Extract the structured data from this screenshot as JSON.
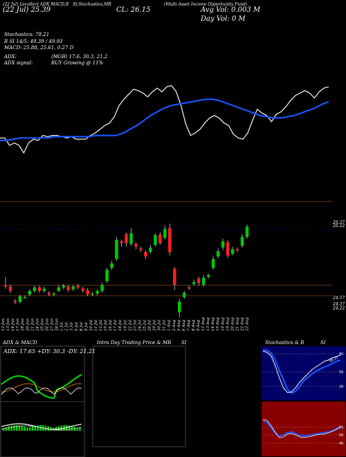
{
  "header": {
    "line1": "(22 Jul) Lecollect ADX MACD,R",
    "line1_b": "SI,Stochastics,MR",
    "line1_c": "(Multi Asset Income Opportunity Fund)",
    "open_label": "(22 Jul) 25.39",
    "cl_label": "CL: 26.15",
    "avg_vol": "Avg Vol: 0.003 M",
    "day_vol": "Day Vol: 0   M",
    "stoch": "Stochastics: 78.21",
    "rsi": "R           SI 14/5: 49.39 / 49.93",
    "macd": "MACD: 25.88, 25.61, 0.27 D",
    "adx": "ADX:",
    "adx_vals": "(MGB) 17.6, 30.3, 21.2",
    "adx_signal": "ADX  signal:",
    "adx_signal_val": "BUY Growing @ 11%"
  },
  "price_axis": {
    "top_label": "26.37",
    "top_label2": "26.22",
    "low_label": "24.57",
    "low_label2": "24.37",
    "low_label3": "24.22"
  },
  "dates": [
    "12 Jun",
    "13 Jun",
    "14 Jun",
    "17 Jun",
    "18 Jun",
    "20 Jun",
    "21 Jun",
    "24 Jun",
    "25 Jun",
    "26 Jun",
    "27 Jun",
    "28 Jun",
    "1 Jul",
    "2 Jul",
    "3 Jul",
    "5 Jul",
    "8 Jul",
    "9 Jul",
    "10 Jul",
    "11 Jul",
    "12 Jul",
    "15 Jul",
    "16 Jul",
    "17 Jul",
    "18 Jul",
    "19 Jul",
    "22 Jul",
    "23 Jul",
    "24 Jul",
    "25 Jul",
    "26 Jul",
    "29 Jul",
    "30 Jul",
    "31 Jul",
    "1 Aug",
    "2 Aug",
    "5 Aug",
    "6 Aug",
    "7 Aug",
    "8 Aug",
    "9 Aug",
    "12 Aug",
    "13 Aug",
    "14 Aug",
    "15 Aug",
    "16 Aug",
    "19 Aug",
    "20 Aug",
    "21 Aug",
    "22 Aug",
    "23 Aug"
  ],
  "panels": {
    "adx_title": "ADX  & MACD",
    "adx_values": "ADX: 17.65  +DY: 30.3  -DY: 21.21",
    "intra_title": "Intra  Day Trading Price  & MR",
    "intra_title_b": "SI",
    "stoch_title": "Stochastics  & R",
    "stoch_title_b": "SI",
    "stoch_levels": [
      "80",
      "50",
      "20"
    ],
    "rsi_levels": [
      "55",
      "50",
      "45"
    ],
    "stoch_value": "78.21"
  },
  "colors": {
    "up": "#00cc00",
    "down": "#ff2020",
    "ma": "#1a55ff",
    "line": "#ffffff",
    "grid": "#8b4513",
    "adx_green": "#00dd00",
    "stoch_bg": "#000066",
    "rsi_bg": "#880000"
  },
  "chart_data": {
    "type": "candlestick",
    "candles": [
      {
        "o": 24.82,
        "c": 24.8,
        "h": 25.02,
        "l": 24.75
      },
      {
        "o": 24.8,
        "c": 24.7,
        "h": 24.85,
        "l": 24.65
      },
      {
        "o": 24.48,
        "c": 24.45,
        "h": 24.52,
        "l": 24.4
      },
      {
        "o": 24.45,
        "c": 24.58,
        "h": 24.62,
        "l": 24.42
      },
      {
        "o": 24.55,
        "c": 24.56,
        "h": 24.6,
        "l": 24.52
      },
      {
        "o": 24.62,
        "c": 24.7,
        "h": 24.74,
        "l": 24.58
      },
      {
        "o": 24.7,
        "c": 24.78,
        "h": 24.82,
        "l": 24.66
      },
      {
        "o": 24.78,
        "c": 24.7,
        "h": 24.82,
        "l": 24.66
      },
      {
        "o": 24.7,
        "c": 24.75,
        "h": 24.8,
        "l": 24.66
      },
      {
        "o": 24.66,
        "c": 24.62,
        "h": 24.7,
        "l": 24.58
      },
      {
        "o": 24.62,
        "c": 24.64,
        "h": 24.68,
        "l": 24.58
      },
      {
        "o": 24.7,
        "c": 24.78,
        "h": 24.84,
        "l": 24.68
      },
      {
        "o": 24.78,
        "c": 24.82,
        "h": 24.86,
        "l": 24.74
      },
      {
        "o": 24.8,
        "c": 24.72,
        "h": 24.84,
        "l": 24.68
      },
      {
        "o": 24.74,
        "c": 24.8,
        "h": 24.84,
        "l": 24.7
      },
      {
        "o": 24.82,
        "c": 24.78,
        "h": 24.86,
        "l": 24.74
      },
      {
        "o": 24.76,
        "c": 24.7,
        "h": 24.8,
        "l": 24.66
      },
      {
        "o": 24.72,
        "c": 24.62,
        "h": 24.76,
        "l": 24.58
      },
      {
        "o": 24.62,
        "c": 24.64,
        "h": 24.68,
        "l": 24.58
      },
      {
        "o": 24.64,
        "c": 24.7,
        "h": 24.74,
        "l": 24.6
      },
      {
        "o": 24.7,
        "c": 24.84,
        "h": 24.88,
        "l": 24.66
      },
      {
        "o": 24.92,
        "c": 25.18,
        "h": 25.22,
        "l": 24.88
      },
      {
        "o": 25.22,
        "c": 25.32,
        "h": 25.38,
        "l": 25.18
      },
      {
        "o": 25.42,
        "c": 25.85,
        "h": 25.92,
        "l": 25.38
      },
      {
        "o": 25.82,
        "c": 25.78,
        "h": 25.86,
        "l": 25.7
      },
      {
        "o": 25.98,
        "c": 25.78,
        "h": 26.02,
        "l": 25.7
      },
      {
        "o": 25.76,
        "c": 26.0,
        "h": 26.12,
        "l": 25.72
      },
      {
        "o": 25.76,
        "c": 25.7,
        "h": 25.8,
        "l": 25.64
      },
      {
        "o": 25.66,
        "c": 25.62,
        "h": 25.7,
        "l": 25.58
      },
      {
        "o": 25.58,
        "c": 25.48,
        "h": 25.62,
        "l": 25.42
      },
      {
        "o": 25.58,
        "c": 25.68,
        "h": 25.74,
        "l": 25.54
      },
      {
        "o": 25.74,
        "c": 25.96,
        "h": 26.0,
        "l": 25.7
      },
      {
        "o": 25.98,
        "c": 25.78,
        "h": 26.02,
        "l": 25.74
      },
      {
        "o": 25.9,
        "c": 26.1,
        "h": 26.18,
        "l": 25.86
      },
      {
        "o": 26.12,
        "c": 25.58,
        "h": 26.22,
        "l": 25.5
      },
      {
        "o": 25.2,
        "c": 24.84,
        "h": 25.24,
        "l": 24.72
      },
      {
        "o": 24.22,
        "c": 24.46,
        "h": 24.52,
        "l": 24.1
      },
      {
        "o": 24.56,
        "c": 24.66,
        "h": 24.7,
        "l": 24.52
      },
      {
        "o": 24.78,
        "c": 24.76,
        "h": 24.82,
        "l": 24.72
      },
      {
        "o": 24.86,
        "c": 24.9,
        "h": 24.96,
        "l": 24.82
      },
      {
        "o": 24.98,
        "c": 24.88,
        "h": 25.02,
        "l": 24.82
      },
      {
        "o": 24.84,
        "c": 25.0,
        "h": 25.06,
        "l": 24.8
      },
      {
        "o": 25.02,
        "c": 25.06,
        "h": 25.1,
        "l": 24.98
      },
      {
        "o": 25.22,
        "c": 25.42,
        "h": 25.48,
        "l": 25.18
      },
      {
        "o": 25.48,
        "c": 25.6,
        "h": 25.66,
        "l": 25.44
      },
      {
        "o": 25.68,
        "c": 25.82,
        "h": 25.88,
        "l": 25.62
      },
      {
        "o": 25.8,
        "c": 25.5,
        "h": 25.84,
        "l": 25.44
      },
      {
        "o": 25.54,
        "c": 25.64,
        "h": 25.7,
        "l": 25.5
      },
      {
        "o": 25.64,
        "c": 25.62,
        "h": 25.68,
        "l": 25.58
      },
      {
        "o": 25.72,
        "c": 25.92,
        "h": 25.98,
        "l": 25.68
      },
      {
        "o": 25.92,
        "c": 26.15,
        "h": 26.2,
        "l": 25.88
      }
    ],
    "ylim": [
      24.0,
      26.5
    ],
    "upper_white_line": [
      0.56,
      0.56,
      0.5,
      0.52,
      0.5,
      0.44,
      0.52,
      0.55,
      0.54,
      0.58,
      0.57,
      0.58,
      0.58,
      0.57,
      0.56,
      0.57,
      0.55,
      0.55,
      0.55,
      0.58,
      0.6,
      0.63,
      0.66,
      0.68,
      0.73,
      0.82,
      0.87,
      0.91,
      0.95,
      0.94,
      0.92,
      0.89,
      0.93,
      0.96,
      0.93,
      0.97,
      0.98,
      0.93,
      0.82,
      0.67,
      0.58,
      0.6,
      0.63,
      0.68,
      0.72,
      0.74,
      0.72,
      0.68,
      0.66,
      0.59,
      0.56,
      0.55,
      0.6,
      0.7,
      0.79,
      0.76,
      0.74,
      0.69,
      0.75,
      0.77,
      0.81,
      0.86,
      0.9,
      0.92,
      0.94,
      0.92,
      0.88,
      0.93,
      0.96,
      0.97
    ],
    "upper_blue_line": [
      0.54,
      0.54,
      0.55,
      0.56,
      0.56,
      0.56,
      0.56,
      0.56,
      0.57,
      0.57,
      0.57,
      0.57,
      0.57,
      0.57,
      0.58,
      0.58,
      0.58,
      0.58,
      0.6,
      0.63,
      0.66,
      0.7,
      0.74,
      0.77,
      0.8,
      0.82,
      0.83,
      0.84,
      0.85,
      0.86,
      0.87,
      0.87,
      0.86,
      0.84,
      0.82,
      0.8,
      0.78,
      0.76,
      0.74,
      0.73,
      0.72,
      0.72,
      0.73,
      0.74,
      0.76,
      0.78,
      0.8,
      0.83,
      0.85
    ]
  }
}
